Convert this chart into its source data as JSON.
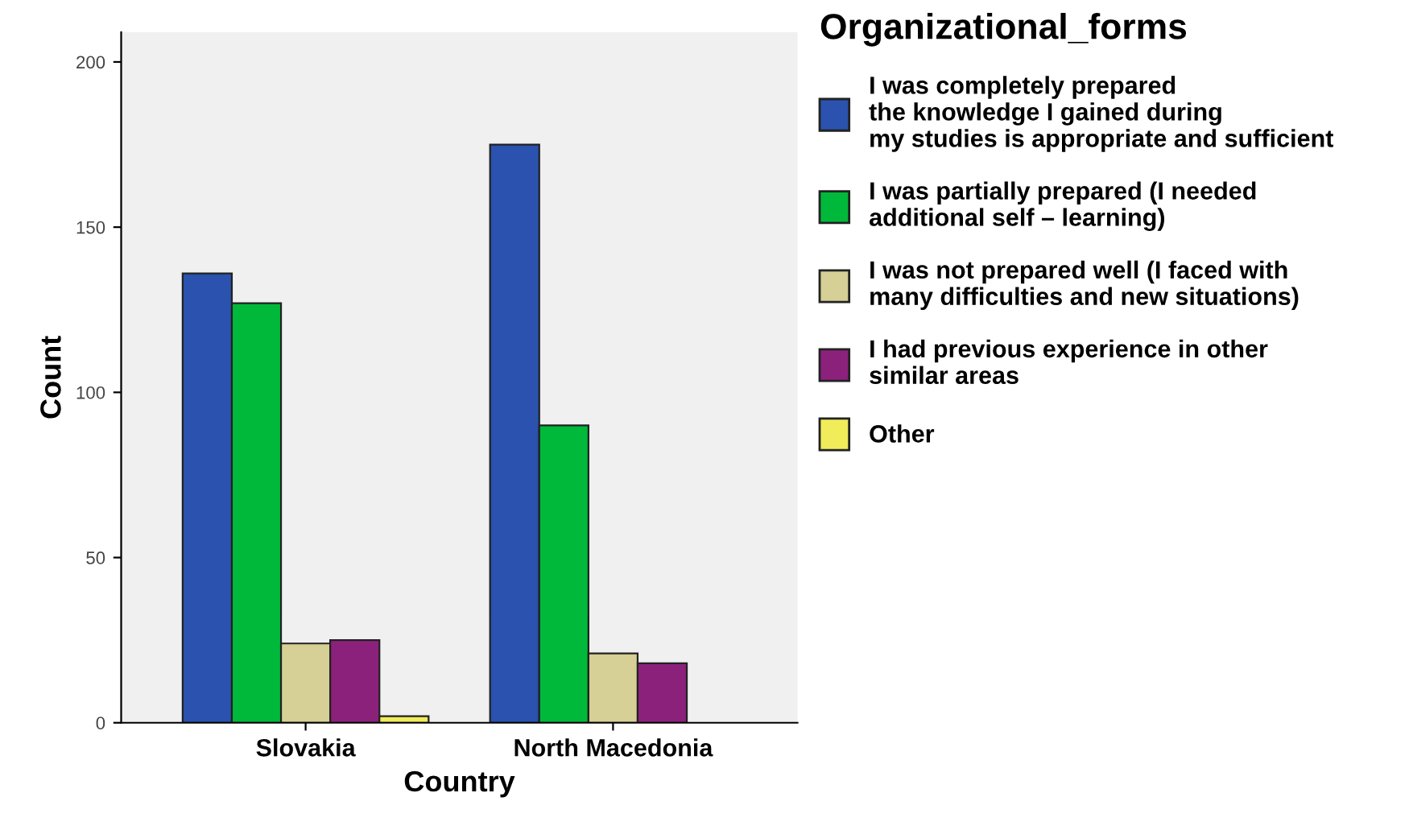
{
  "chart_data": {
    "type": "bar",
    "xlabel": "Country",
    "ylabel": "Count",
    "legend_title": "Organizational_forms",
    "categories": [
      "Slovakia",
      "North Macedonia"
    ],
    "series": [
      {
        "name": "I was completely prepared\nthe knowledge I gained during\nmy studies is appropriate and sufficient",
        "color": "#2a52ae",
        "values": [
          136,
          175
        ]
      },
      {
        "name": "I was partially prepared (I needed\nadditional self – learning)",
        "color": "#00b93a",
        "values": [
          127,
          90
        ]
      },
      {
        "name": "I was not prepared well (I faced with\nmany difficulties and new situations)",
        "color": "#d6cf96",
        "values": [
          24,
          21
        ]
      },
      {
        "name": "I had previous experience in other\nsimilar areas",
        "color": "#8c217c",
        "values": [
          25,
          18
        ]
      },
      {
        "name": "Other",
        "color": "#f1ec5a",
        "values": [
          2,
          null
        ]
      }
    ],
    "ylim": [
      0,
      209
    ],
    "yticks": [
      0,
      50,
      100,
      150,
      200
    ],
    "grid": false,
    "legend": "right"
  }
}
